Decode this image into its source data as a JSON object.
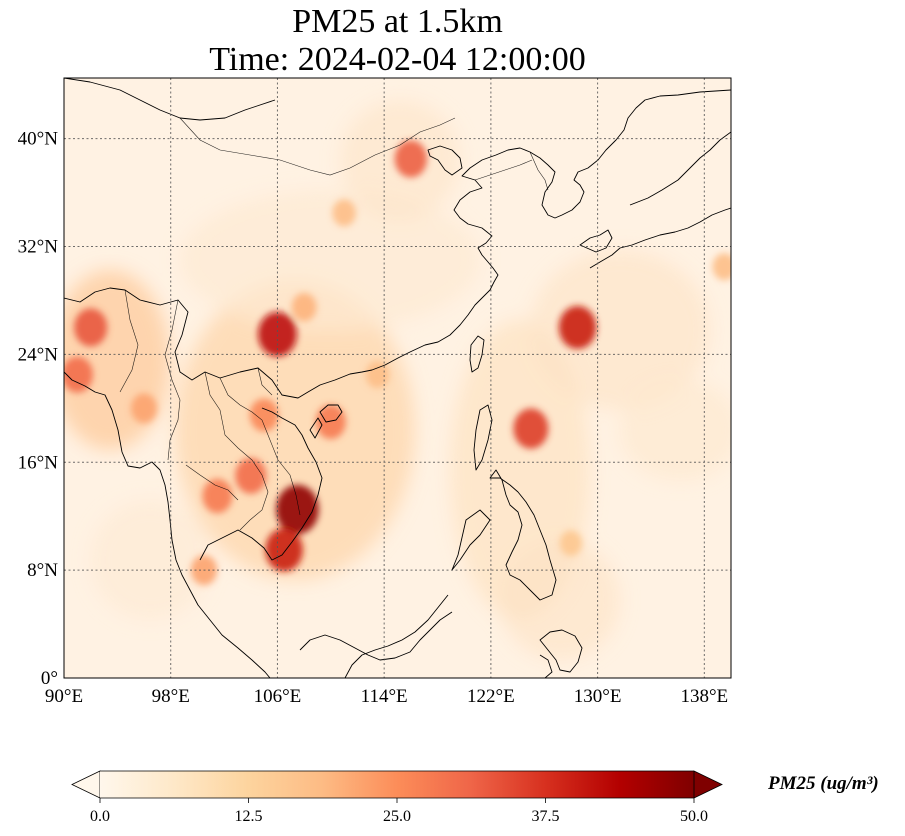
{
  "figure": {
    "title_line1": "PM25 at 1.5km",
    "title_line2": "Time: 2024-02-04 12:00:00"
  },
  "map": {
    "projection": "PlateCarree",
    "lon_range": [
      90,
      140
    ],
    "lat_range": [
      0,
      44.5
    ],
    "gridlines": "dotted",
    "lon_ticks": [
      {
        "value": 90,
        "label": "90°E"
      },
      {
        "value": 98,
        "label": "98°E"
      },
      {
        "value": 106,
        "label": "106°E"
      },
      {
        "value": 114,
        "label": "114°E"
      },
      {
        "value": 122,
        "label": "122°E"
      },
      {
        "value": 130,
        "label": "130°E"
      },
      {
        "value": 138,
        "label": "138°E"
      }
    ],
    "lat_ticks": [
      {
        "value": 0,
        "label": "0°"
      },
      {
        "value": 8,
        "label": "8°N"
      },
      {
        "value": 16,
        "label": "16°N"
      },
      {
        "value": 24,
        "label": "24°N"
      },
      {
        "value": 32,
        "label": "32°N"
      },
      {
        "value": 40,
        "label": "40°N"
      }
    ],
    "hotspots": [
      {
        "lon": 107.5,
        "lat": 12.5,
        "value": 48
      },
      {
        "lon": 106.5,
        "lat": 9.5,
        "value": 40
      },
      {
        "lon": 106,
        "lat": 25.5,
        "value": 42
      },
      {
        "lon": 92,
        "lat": 26,
        "value": 33
      },
      {
        "lon": 91,
        "lat": 22.5,
        "value": 30
      },
      {
        "lon": 96,
        "lat": 20,
        "value": 22
      },
      {
        "lon": 104,
        "lat": 15,
        "value": 30
      },
      {
        "lon": 101.5,
        "lat": 13.5,
        "value": 28
      },
      {
        "lon": 105,
        "lat": 19.5,
        "value": 26
      },
      {
        "lon": 110,
        "lat": 19,
        "value": 28
      },
      {
        "lon": 125,
        "lat": 18.5,
        "value": 36
      },
      {
        "lon": 128.5,
        "lat": 26,
        "value": 40
      },
      {
        "lon": 116,
        "lat": 38.5,
        "value": 32
      },
      {
        "lon": 108,
        "lat": 27.5,
        "value": 20
      },
      {
        "lon": 111,
        "lat": 34.5,
        "value": 18
      },
      {
        "lon": 113.5,
        "lat": 22.5,
        "value": 18
      },
      {
        "lon": 100.5,
        "lat": 8,
        "value": 22
      },
      {
        "lon": 128,
        "lat": 10,
        "value": 16
      },
      {
        "lon": 139.5,
        "lat": 30.5,
        "value": 18
      }
    ]
  },
  "colorbar": {
    "cmap": "OrRd",
    "colors": [
      "#fff7ec",
      "#fee8c8",
      "#fdd49e",
      "#fdbb84",
      "#fc8d59",
      "#ef6548",
      "#d7301f",
      "#b30000",
      "#7f0000"
    ],
    "min": 0.0,
    "max": 50.0,
    "extend": "both",
    "ticks": [
      "0.0",
      "12.5",
      "25.0",
      "37.5",
      "50.0"
    ],
    "label": "PM25 (ug/m³)"
  }
}
